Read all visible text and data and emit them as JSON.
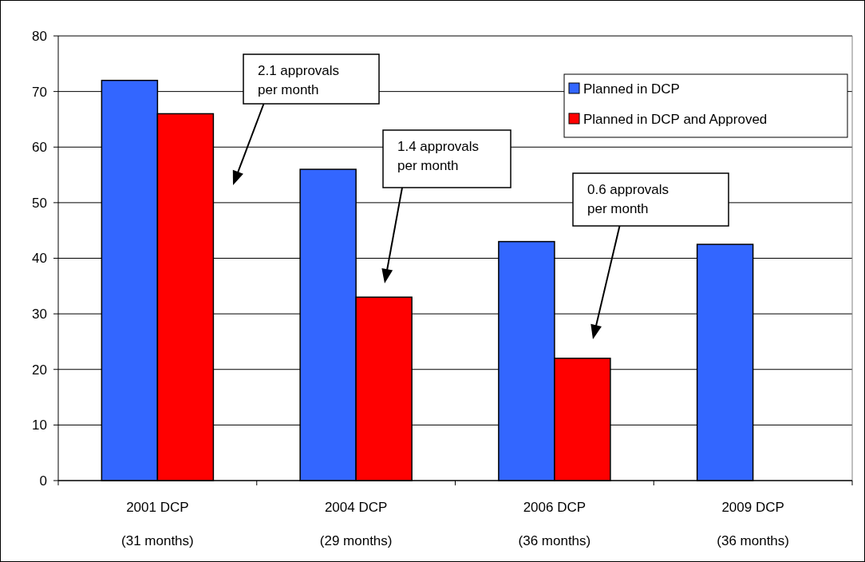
{
  "chart_data": {
    "type": "bar",
    "categories": [
      "2001 DCP\n(31 months)",
      "2004 DCP\n(29 months)",
      "2006 DCP\n(36 months)",
      "2009 DCP\n(36 months)"
    ],
    "series": [
      {
        "name": "Planned in DCP",
        "color": "#3366ff",
        "values": [
          72,
          56,
          43,
          42.5
        ]
      },
      {
        "name": "Planned in DCP and Approved",
        "color": "#ff0000",
        "values": [
          66,
          33,
          22,
          null
        ]
      }
    ],
    "ylim": [
      0,
      80
    ],
    "yticks": [
      0,
      10,
      20,
      30,
      40,
      50,
      60,
      70,
      80
    ],
    "grid": "y",
    "legend": "top right",
    "annotations": [
      "2.1 approvals\nper month",
      "1.4 approvals\nper month",
      "0.6 approvals\nper month"
    ]
  }
}
